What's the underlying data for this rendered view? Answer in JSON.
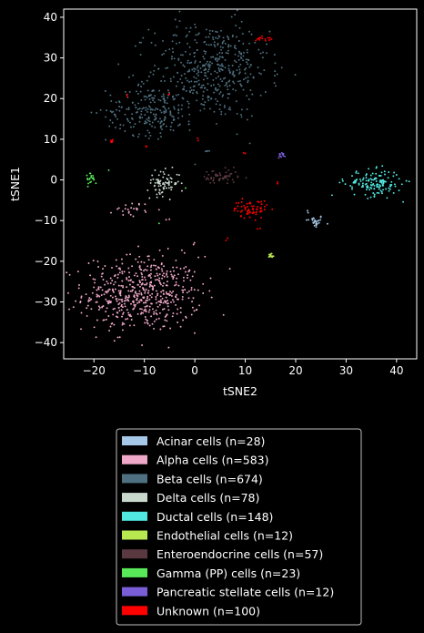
{
  "chart_data": {
    "type": "scatter",
    "title": "",
    "xlabel": "tSNE2",
    "ylabel": "tSNE1",
    "xlim": [
      -26,
      44
    ],
    "ylim": [
      -44,
      42
    ],
    "xticks": [
      -20,
      -10,
      0,
      10,
      20,
      30,
      40
    ],
    "yticks": [
      -40,
      -30,
      -20,
      -10,
      0,
      10,
      20,
      30,
      40
    ],
    "grid": false,
    "legend_placement": "below",
    "background": "#000000",
    "series": [
      {
        "name": "Acinar cells (n=28)",
        "color": "#a6c8e8",
        "count": 28,
        "clusters": [
          {
            "cx": 23.8,
            "cy": -10.2,
            "sx": 0.9,
            "sy": 0.8,
            "n": 26
          },
          {
            "cx": 22.5,
            "cy": -8.0,
            "sx": 0.3,
            "sy": 0.3,
            "n": 2
          }
        ]
      },
      {
        "name": "Alpha cells (n=583)",
        "color": "#f0a8c8",
        "count": 583,
        "clusters": [
          {
            "cx": -10.5,
            "cy": -28.0,
            "sx": 5.8,
            "sy": 4.6,
            "n": 555
          },
          {
            "cx": -12.5,
            "cy": -7.2,
            "sx": 1.8,
            "sy": 0.9,
            "n": 24
          },
          {
            "cx": 0,
            "cy": -15.5,
            "sx": 0.4,
            "sy": 0.4,
            "n": 2
          },
          {
            "cx": -5,
            "cy": -9.5,
            "sx": 0.5,
            "sy": 0.5,
            "n": 2
          }
        ]
      },
      {
        "name": "Beta cells (n=674)",
        "color": "#4e7080",
        "count": 674,
        "clusters": [
          {
            "cx": 3.0,
            "cy": 27.0,
            "sx": 5.8,
            "sy": 6.0,
            "n": 430
          },
          {
            "cx": -8.5,
            "cy": 17.0,
            "sx": 4.5,
            "sy": 3.0,
            "n": 220
          },
          {
            "cx": 10.0,
            "cy": 32.0,
            "sx": 2.5,
            "sy": 3.0,
            "n": 20
          },
          {
            "cx": 2.5,
            "cy": 7.5,
            "sx": 0.4,
            "sy": 0.4,
            "n": 4
          }
        ]
      },
      {
        "name": "Delta cells (n=78)",
        "color": "#c8d8cc",
        "count": 78,
        "clusters": [
          {
            "cx": -6.2,
            "cy": -0.8,
            "sx": 1.6,
            "sy": 1.5,
            "n": 78
          }
        ]
      },
      {
        "name": "Ductal cells (n=148)",
        "color": "#50e8e0",
        "count": 148,
        "clusters": [
          {
            "cx": 35.5,
            "cy": -0.8,
            "sx": 2.8,
            "sy": 1.6,
            "n": 148
          }
        ]
      },
      {
        "name": "Endothelial cells (n=12)",
        "color": "#b8e850",
        "count": 12,
        "clusters": [
          {
            "cx": 15.2,
            "cy": -18.5,
            "sx": 0.25,
            "sy": 0.3,
            "n": 12
          }
        ]
      },
      {
        "name": "Enteroendocrine cells (n=57)",
        "color": "#5a3840",
        "count": 57,
        "clusters": [
          {
            "cx": 5.0,
            "cy": 0.6,
            "sx": 1.8,
            "sy": 1.0,
            "n": 57
          }
        ]
      },
      {
        "name": "Gamma (PP) cells (n=23)",
        "color": "#58e858",
        "count": 23,
        "clusters": [
          {
            "cx": -20.5,
            "cy": 0.5,
            "sx": 0.6,
            "sy": 0.8,
            "n": 20
          },
          {
            "cx": -17.5,
            "cy": 2.5,
            "sx": 0.3,
            "sy": 0.3,
            "n": 1
          },
          {
            "cx": -1.5,
            "cy": -2.0,
            "sx": 0.3,
            "sy": 0.3,
            "n": 1
          },
          {
            "cx": -7.0,
            "cy": -11.0,
            "sx": 0.3,
            "sy": 0.3,
            "n": 1
          }
        ]
      },
      {
        "name": "Pancreatic stellate cells (n=12)",
        "color": "#7a5ed8",
        "count": 12,
        "clusters": [
          {
            "cx": 17.2,
            "cy": 6.2,
            "sx": 0.35,
            "sy": 0.35,
            "n": 12
          }
        ]
      },
      {
        "name": "Unknown (n=100)",
        "color": "#ff0000",
        "count": 100,
        "clusters": [
          {
            "cx": 11.0,
            "cy": -7.2,
            "sx": 1.7,
            "sy": 1.1,
            "n": 64
          },
          {
            "cx": 13.5,
            "cy": 34.8,
            "sx": 0.8,
            "sy": 0.3,
            "n": 14
          },
          {
            "cx": -16.5,
            "cy": 9.5,
            "sx": 0.2,
            "sy": 0.4,
            "n": 6
          },
          {
            "cx": 10.0,
            "cy": 6.8,
            "sx": 0.2,
            "sy": 0.2,
            "n": 2
          },
          {
            "cx": 16.5,
            "cy": -0.5,
            "sx": 0.2,
            "sy": 0.2,
            "n": 2
          },
          {
            "cx": -13.5,
            "cy": 20.5,
            "sx": 0.2,
            "sy": 0.2,
            "n": 2
          },
          {
            "cx": 6.2,
            "cy": -14.5,
            "sx": 0.3,
            "sy": 0.3,
            "n": 2
          },
          {
            "cx": -9.5,
            "cy": 8.0,
            "sx": 0.2,
            "sy": 0.2,
            "n": 2
          },
          {
            "cx": -5.0,
            "cy": 21.0,
            "sx": 0.2,
            "sy": 0.2,
            "n": 2
          },
          {
            "cx": 13.0,
            "cy": -12.0,
            "sx": 0.2,
            "sy": 0.2,
            "n": 2
          },
          {
            "cx": 0.5,
            "cy": 10.0,
            "sx": 0.2,
            "sy": 0.2,
            "n": 2
          }
        ]
      }
    ]
  }
}
